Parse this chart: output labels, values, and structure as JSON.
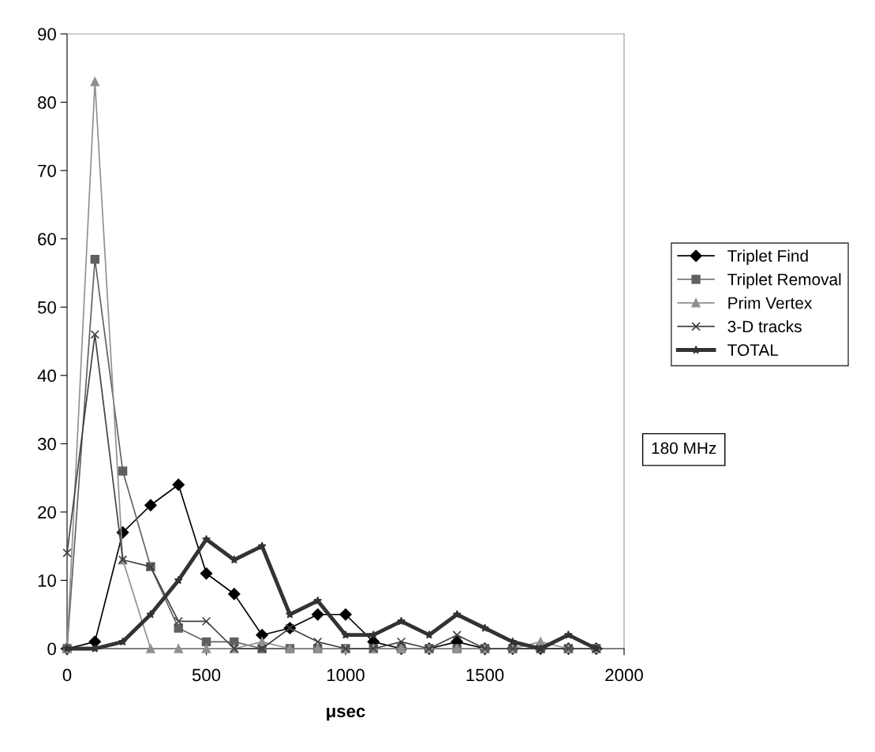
{
  "chart_data": {
    "type": "line",
    "xlabel": "μsec",
    "x": [
      0,
      100,
      200,
      300,
      400,
      500,
      600,
      700,
      800,
      900,
      1000,
      1100,
      1200,
      1300,
      1400,
      1500,
      1600,
      1700,
      1800,
      1900
    ],
    "series": [
      {
        "name": "Triplet Find",
        "color": "#000000",
        "marker": "diamond",
        "values": [
          0,
          1,
          17,
          21,
          24,
          11,
          8,
          2,
          3,
          5,
          5,
          1,
          0,
          0,
          1,
          0,
          0,
          0,
          0,
          0
        ]
      },
      {
        "name": "Triplet Removal",
        "color": "#606060",
        "marker": "square",
        "values": [
          0,
          57,
          26,
          12,
          3,
          1,
          1,
          0,
          0,
          0,
          0,
          0,
          0,
          0,
          0,
          0,
          0,
          0,
          0,
          0
        ]
      },
      {
        "name": "Prim Vertex",
        "color": "#909090",
        "marker": "triangle",
        "values": [
          0,
          83,
          13,
          0,
          0,
          0,
          0,
          1,
          0,
          0,
          0,
          0,
          0,
          0,
          0,
          0,
          0,
          1,
          0,
          0
        ]
      },
      {
        "name": "3-D tracks",
        "color": "#404040",
        "marker": "cross",
        "values": [
          14,
          46,
          13,
          12,
          4,
          4,
          0,
          0,
          3,
          1,
          0,
          0,
          1,
          0,
          2,
          0,
          0,
          0,
          0,
          0
        ]
      },
      {
        "name": "TOTAL",
        "color": "#333333",
        "marker": "star",
        "values": [
          0,
          0,
          1,
          5,
          10,
          16,
          13,
          15,
          5,
          7,
          2,
          2,
          4,
          2,
          5,
          3,
          1,
          0,
          2,
          0
        ]
      }
    ],
    "xlim": [
      0,
      2000
    ],
    "xticks": [
      0,
      500,
      1000,
      1500,
      2000
    ],
    "ylim": [
      0,
      90
    ],
    "yticks": [
      0,
      10,
      20,
      30,
      40,
      50,
      60,
      70,
      80,
      90
    ],
    "grid": false,
    "legend": "right",
    "annotations": [
      "180 MHz"
    ]
  }
}
